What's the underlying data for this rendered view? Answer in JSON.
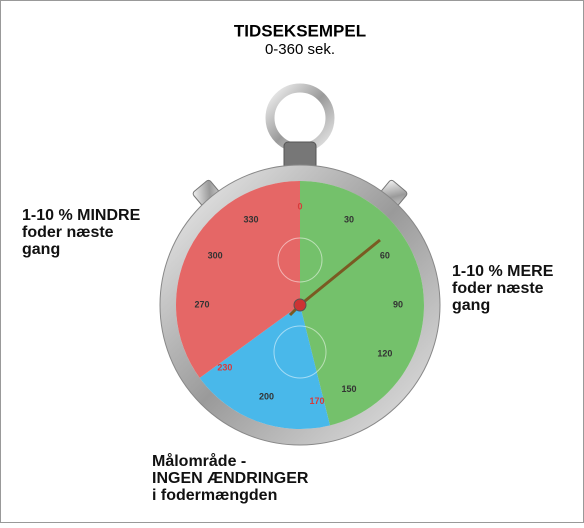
{
  "header": {
    "title": "TIDSEKSEMPEL",
    "subtitle": "0-360 sek."
  },
  "left_note": {
    "lines": [
      "1-10 % MINDRE",
      "foder næste",
      "gang"
    ]
  },
  "right_note": {
    "lines": [
      "1-10 % MERE",
      "foder næste",
      "gang"
    ]
  },
  "bottom_note": {
    "lines": [
      "Målområde -",
      "INGEN ÆNDRINGER",
      "i fodermængden"
    ]
  },
  "dial": [
    {
      "label": 0,
      "color": "#d83a3a"
    },
    {
      "label": 30,
      "color": "#333333"
    },
    {
      "label": 60,
      "color": "#333333"
    },
    {
      "label": 90,
      "color": "#333333"
    },
    {
      "label": 120,
      "color": "#333333"
    },
    {
      "label": 150,
      "color": "#333333"
    },
    {
      "label": 170,
      "color": "#d83a3a"
    },
    {
      "label": 200,
      "color": "#333333"
    },
    {
      "label": 230,
      "color": "#d83a3a"
    },
    {
      "label": 270,
      "color": "#333333"
    },
    {
      "label": 300,
      "color": "#333333"
    },
    {
      "label": 330,
      "color": "#333333"
    }
  ]
}
